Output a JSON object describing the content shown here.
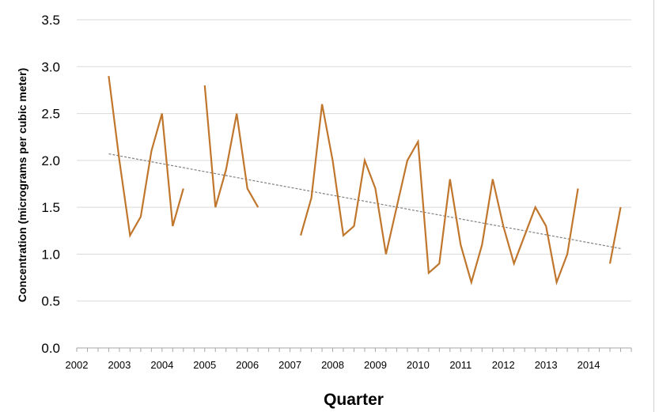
{
  "chart_data": {
    "type": "line",
    "title": "",
    "xlabel": "Quarter",
    "ylabel": "Concentration (micrograms per cubic meter)",
    "xlim": [
      2002,
      2015
    ],
    "ylim": [
      0,
      3.5
    ],
    "yticks": [
      "0.0",
      "0.5",
      "1.0",
      "1.5",
      "2.0",
      "2.5",
      "3.0",
      "3.5"
    ],
    "xticks": [
      "2002",
      "2003",
      "2004",
      "2005",
      "2006",
      "2007",
      "2008",
      "2009",
      "2010",
      "2011",
      "2012",
      "2013",
      "2014"
    ],
    "grid": true,
    "legend": "none",
    "colors": {
      "series": "#c0762c",
      "trend": "#808080",
      "grid": "#d9d9d9",
      "axis": "#a6a6a6"
    },
    "series": [
      {
        "segments": [
          [
            [
              2002.75,
              2.9
            ],
            [
              2003.0,
              2.0
            ],
            [
              2003.25,
              1.2
            ],
            [
              2003.5,
              1.4
            ],
            [
              2003.75,
              2.1
            ],
            [
              2004.0,
              2.5
            ],
            [
              2004.25,
              1.3
            ],
            [
              2004.5,
              1.7
            ]
          ],
          [
            [
              2005.0,
              2.8
            ],
            [
              2005.25,
              1.5
            ],
            [
              2005.5,
              1.9
            ],
            [
              2005.75,
              2.5
            ],
            [
              2006.0,
              1.7
            ],
            [
              2006.25,
              1.5
            ]
          ],
          [
            [
              2007.25,
              1.2
            ],
            [
              2007.5,
              1.6
            ],
            [
              2007.75,
              2.6
            ],
            [
              2008.0,
              2.0
            ],
            [
              2008.25,
              1.2
            ],
            [
              2008.5,
              1.3
            ],
            [
              2008.75,
              2.0
            ],
            [
              2009.0,
              1.7
            ],
            [
              2009.25,
              1.0
            ],
            [
              2009.5,
              1.5
            ],
            [
              2009.75,
              2.0
            ],
            [
              2010.0,
              2.2
            ],
            [
              2010.25,
              0.8
            ],
            [
              2010.5,
              0.9
            ],
            [
              2010.75,
              1.8
            ],
            [
              2011.0,
              1.1
            ],
            [
              2011.25,
              0.7
            ],
            [
              2011.5,
              1.1
            ],
            [
              2011.75,
              1.8
            ],
            [
              2012.0,
              1.3
            ],
            [
              2012.25,
              0.9
            ],
            [
              2012.5,
              1.2
            ],
            [
              2012.75,
              1.5
            ],
            [
              2013.0,
              1.3
            ],
            [
              2013.25,
              0.7
            ],
            [
              2013.5,
              1.0
            ],
            [
              2013.75,
              1.7
            ]
          ],
          [
            [
              2014.5,
              0.9
            ],
            [
              2014.75,
              1.5
            ]
          ]
        ]
      }
    ],
    "trendline": {
      "start": [
        2002.75,
        2.07
      ],
      "end": [
        2014.75,
        1.06
      ]
    }
  }
}
